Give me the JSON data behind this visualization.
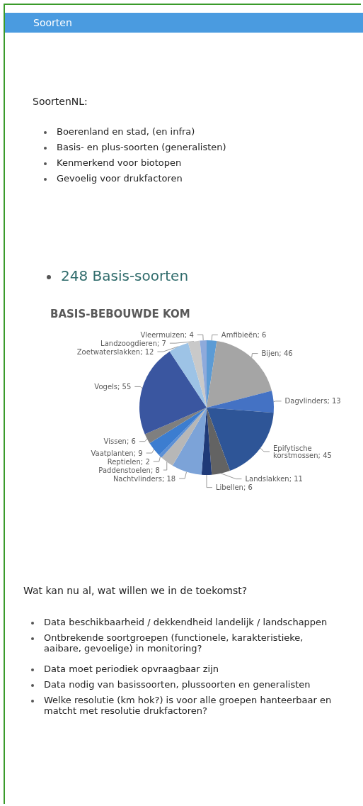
{
  "chart_data": {
    "type": "pie",
    "title": "BASIS-BEBOUWDE KOM",
    "categories": [
      null,
      null,
      null,
      null,
      null,
      null,
      null,
      null,
      null,
      null,
      null,
      null,
      null,
      null,
      null
    ],
    "values": [
      6,
      46,
      13,
      45,
      11,
      6,
      18,
      8,
      2,
      9,
      6,
      55,
      12,
      7,
      4
    ],
    "colors": [
      "#5b9bd5",
      "#a5a5a5",
      "#4472c4",
      "#2e5597",
      "#636363",
      "#1f3a78",
      "#7ca3d8",
      "#b7b7b7",
      "#5b8fd5",
      "#3c7dd0",
      "#7f7f7f",
      "#3a56a0",
      "#9dc3e6",
      "#c9c9c9",
      "#8eaadb"
    ],
    "value_labels": [
      "Amfibieën; 6",
      "Bijen; 46",
      "Dagvlinders; 13",
      "Epifytische korstmossen; 45",
      "Landslakken; 11",
      "Libellen; 6",
      "Nachtvlinders; 18",
      "Paddenstoelen; 8",
      "Reptielen; 2",
      "Vaatplanten; 9",
      "Vissen; 6",
      "Vogels; 55",
      "Zoetwaterslakken; 12",
      "Landzoogdieren; 7",
      "Vleermuizen; 4"
    ],
    "annotations": [
      "Soorten",
      "SoortenNL:",
      "Boerenland en stad, (en infra)",
      "Basis- en plus-soorten (generalisten)",
      "Kenmerkend voor biotopen",
      "Gevoelig voor drukfactoren",
      "248 Basis-soorten",
      "Wat kan nu al, wat willen we in de toekomst?",
      "Data beschikbaarheid / dekkendheid landelijk / landschappen",
      "Ontbrekende soortgroepen (functionele, karakteristieke, aaibare, gevoelige) in monitoring?",
      "Data moet periodiek opvraagbaar zijn",
      "Data nodig van basissoorten, plussoorten en generalisten",
      "Welke resolutie (km hok?) is voor alle groepen hanteerbaar en matcht met resolutie drukfactoren?"
    ]
  }
}
